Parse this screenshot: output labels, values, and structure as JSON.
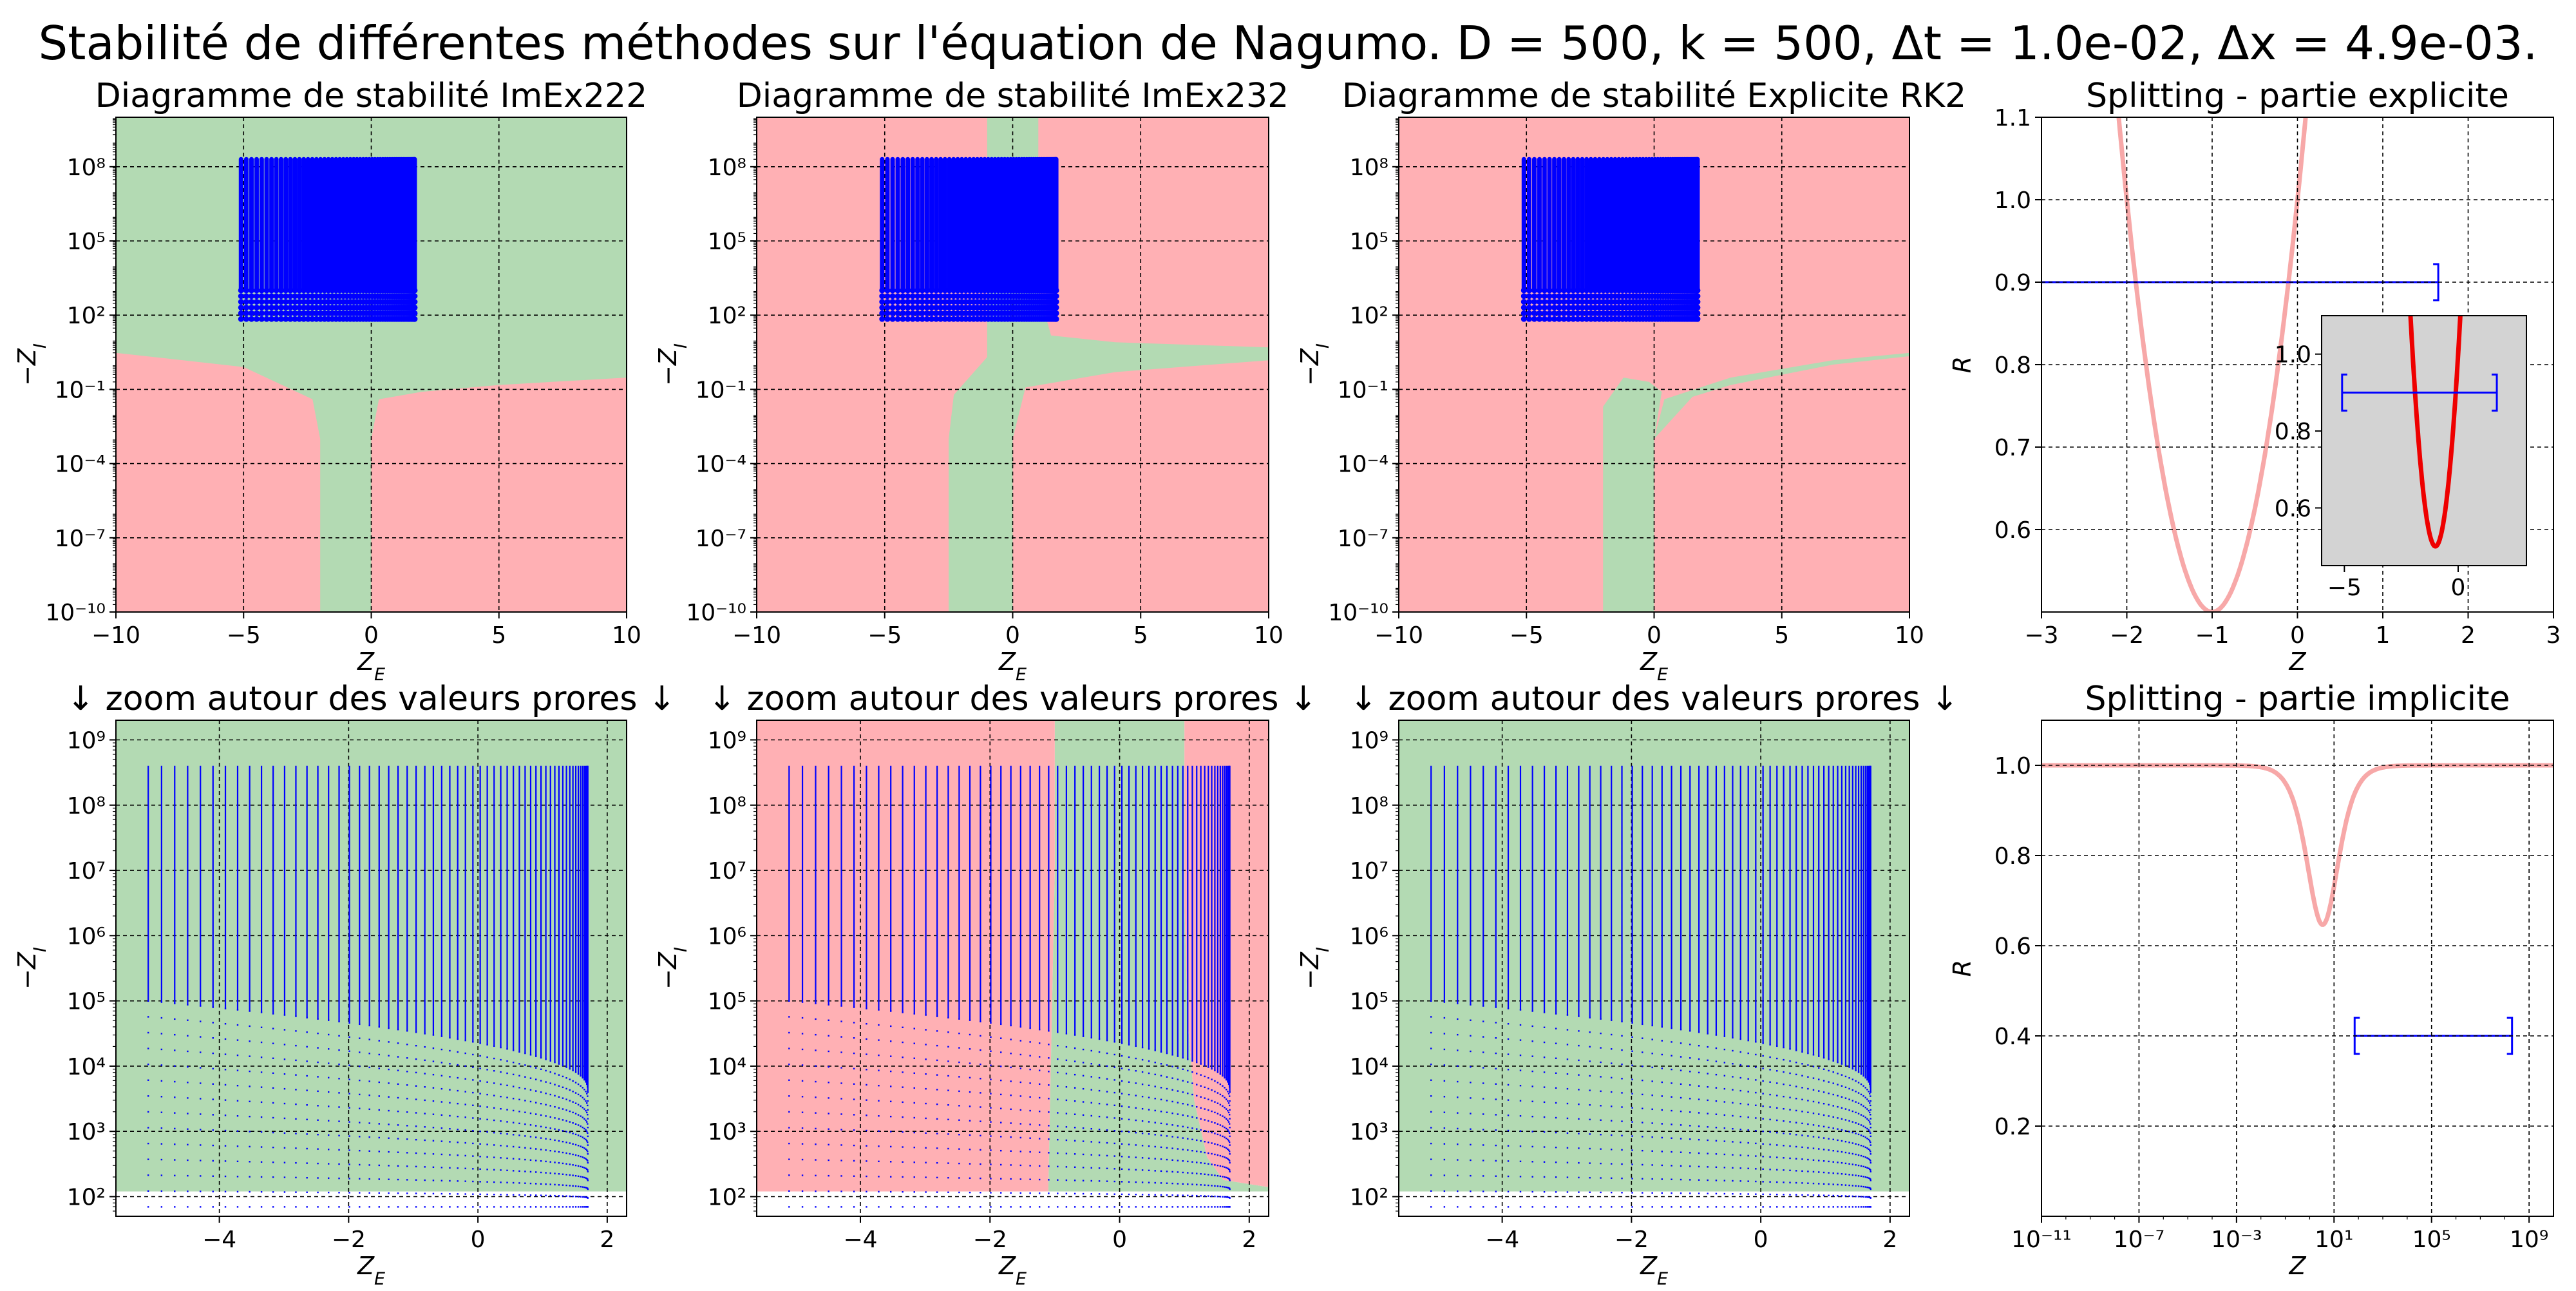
{
  "figure": {
    "suptitle": "Stabilité de différentes méthodes sur l'équation de Nagumo. D = 500, k = 500, Δt = 1.0e-02, Δx = 4.9e-03."
  },
  "colors": {
    "stable": "#b3dab3",
    "unstable": "#ffb0b4",
    "eigen": "#0000ff",
    "curve_light": "#f7a8a8",
    "curve_dark": "#ee0000",
    "inset_bg": "#d3d3d3"
  },
  "chart_data": [
    {
      "id": "stab-imex222",
      "type": "scatter",
      "title": "Diagramme de stabilité ImEx222",
      "xlabel": "Z_E",
      "ylabel": "−Z_I",
      "xlim": [
        -10,
        10
      ],
      "ylim": [
        1e-10,
        10000000000.0
      ],
      "yscale": "log",
      "xticks": [
        "−10",
        "−5",
        "0",
        "5",
        "10"
      ],
      "xtick_values": [
        -10,
        -5,
        0,
        5,
        10
      ],
      "yticks": [
        "10⁻¹⁰",
        "10⁻⁷",
        "10⁻⁴",
        "10⁻¹",
        "10²",
        "10⁵",
        "10⁸"
      ],
      "ytick_values": [
        1e-10,
        1e-07,
        0.0001,
        0.1,
        100.0,
        100000.0,
        100000000.0
      ],
      "grid": true,
      "background": "unstable",
      "regions": [
        {
          "kind": "stable",
          "points": [
            [
              -10,
              10000000000.0
            ],
            [
              10,
              10000000000.0
            ],
            [
              10,
              0.3
            ],
            [
              5,
              0.15
            ],
            [
              2,
              0.08
            ],
            [
              0.3,
              0.04
            ],
            [
              0,
              0.001
            ],
            [
              0,
              1e-10
            ],
            [
              -2,
              1e-10
            ],
            [
              -2,
              0.001
            ],
            [
              -2.3,
              0.04
            ],
            [
              -5,
              0.8
            ],
            [
              -10,
              3
            ]
          ]
        }
      ],
      "eigen_cloud": {
        "xmin": -5.1,
        "xmax": 1.7,
        "ymin": 70,
        "ymax": 200000000.0,
        "columns": 60,
        "rows": 24,
        "marker": "dot"
      }
    },
    {
      "id": "stab-imex232",
      "type": "scatter",
      "title": "Diagramme de stabilité ImEx232",
      "xlabel": "Z_E",
      "ylabel": "−Z_I",
      "xlim": [
        -10,
        10
      ],
      "ylim": [
        1e-10,
        10000000000.0
      ],
      "yscale": "log",
      "xticks": [
        "−10",
        "−5",
        "0",
        "5",
        "10"
      ],
      "xtick_values": [
        -10,
        -5,
        0,
        5,
        10
      ],
      "yticks": [
        "10⁻¹⁰",
        "10⁻⁷",
        "10⁻⁴",
        "10⁻¹",
        "10²",
        "10⁵",
        "10⁸"
      ],
      "ytick_values": [
        1e-10,
        1e-07,
        0.0001,
        0.1,
        100.0,
        100000.0,
        100000000.0
      ],
      "grid": true,
      "background": "unstable",
      "regions": [
        {
          "kind": "stable",
          "points": [
            [
              -1,
              10000000000.0
            ],
            [
              1,
              10000000000.0
            ],
            [
              1,
              1000.0
            ],
            [
              -1,
              1000.0
            ]
          ]
        },
        {
          "kind": "stable",
          "points": [
            [
              -1,
              1000.0
            ],
            [
              1,
              1000.0
            ],
            [
              1.5,
              15
            ],
            [
              4,
              8
            ],
            [
              10,
              5
            ],
            [
              10,
              1.5
            ],
            [
              4,
              0.5
            ],
            [
              0.5,
              0.12
            ],
            [
              0,
              0.001
            ],
            [
              0,
              1e-10
            ],
            [
              -2.5,
              1e-10
            ],
            [
              -2.5,
              0.001
            ],
            [
              -2.3,
              0.06
            ],
            [
              -1,
              2
            ]
          ]
        }
      ],
      "eigen_cloud": {
        "xmin": -5.1,
        "xmax": 1.7,
        "ymin": 70,
        "ymax": 200000000.0,
        "columns": 60,
        "rows": 24,
        "marker": "dot"
      }
    },
    {
      "id": "stab-rk2",
      "type": "scatter",
      "title": "Diagramme de stabilité Explicite RK2",
      "xlabel": "Z_E",
      "ylabel": "−Z_I",
      "xlim": [
        -10,
        10
      ],
      "ylim": [
        1e-10,
        10000000000.0
      ],
      "yscale": "log",
      "xticks": [
        "−10",
        "−5",
        "0",
        "5",
        "10"
      ],
      "xtick_values": [
        -10,
        -5,
        0,
        5,
        10
      ],
      "yticks": [
        "10⁻¹⁰",
        "10⁻⁷",
        "10⁻⁴",
        "10⁻¹",
        "10²",
        "10⁵",
        "10⁸"
      ],
      "ytick_values": [
        1e-10,
        1e-07,
        0.0001,
        0.1,
        100.0,
        100000.0,
        100000000.0
      ],
      "grid": true,
      "background": "unstable",
      "regions": [
        {
          "kind": "stable",
          "points": [
            [
              -2,
              1e-10
            ],
            [
              0,
              1e-10
            ],
            [
              0,
              0.001
            ],
            [
              0.4,
              0.04
            ],
            [
              3,
              0.3
            ],
            [
              7,
              1.5
            ],
            [
              10,
              3
            ],
            [
              10,
              2.2
            ],
            [
              7,
              1
            ],
            [
              3,
              0.15
            ],
            [
              1.5,
              0.05
            ],
            [
              0,
              0.001
            ],
            [
              0.3,
              0.08
            ],
            [
              -0.2,
              0.2
            ],
            [
              -1.2,
              0.3
            ],
            [
              -2,
              0.02
            ],
            [
              -2,
              1e-10
            ]
          ]
        }
      ],
      "eigen_cloud": {
        "xmin": -5.1,
        "xmax": 1.7,
        "ymin": 70,
        "ymax": 200000000.0,
        "columns": 60,
        "rows": 24,
        "marker": "dot"
      }
    },
    {
      "id": "splitting-explicite",
      "type": "line",
      "title": "Splitting - partie explicite",
      "xlabel": "Z",
      "ylabel": "R",
      "xlim": [
        -3,
        3
      ],
      "ylim": [
        0.5,
        1.1
      ],
      "xticks": [
        "−3",
        "−2",
        "−1",
        "0",
        "1",
        "2",
        "3"
      ],
      "xtick_values": [
        -3,
        -2,
        -1,
        0,
        1,
        2,
        3
      ],
      "yticks": [
        "0.6",
        "0.7",
        "0.8",
        "0.9",
        "1.0",
        "1.1"
      ],
      "ytick_values": [
        0.6,
        0.7,
        0.8,
        0.9,
        1.0,
        1.1
      ],
      "grid": true,
      "series": [
        {
          "formula": "|1 + z + z²/2|",
          "color": "curve_light"
        }
      ],
      "interval": {
        "x0": -3.5,
        "x1": 1.65,
        "y": 0.9
      },
      "inset": {
        "xlim": [
          -6,
          3
        ],
        "ylim": [
          0.45,
          1.1
        ],
        "xticks": [
          "−5",
          "0"
        ],
        "xtick_values": [
          -5,
          0
        ],
        "yticks": [
          "0.6",
          "0.8",
          "1.0"
        ],
        "ytick_values": [
          0.6,
          0.8,
          1.0
        ],
        "series": [
          {
            "formula": "|1 + z + z²/2|",
            "color": "curve_dark"
          }
        ],
        "interval": {
          "x0": -5.1,
          "x1": 1.7,
          "y": 0.9
        }
      }
    },
    {
      "id": "zoom-imex222",
      "type": "scatter",
      "title": "↓  zoom autour des valeurs prores  ↓",
      "xlabel": "Z_E",
      "ylabel": "−Z_I",
      "xlim": [
        -5.6,
        2.3
      ],
      "ylim": [
        50,
        2000000000.0
      ],
      "yscale": "log",
      "xticks": [
        "−4",
        "−2",
        "0",
        "2"
      ],
      "xtick_values": [
        -4,
        -2,
        0,
        2
      ],
      "yticks": [
        "10²",
        "10³",
        "10⁴",
        "10⁵",
        "10⁶",
        "10⁷",
        "10⁸",
        "10⁹"
      ],
      "ytick_values": [
        100,
        1000,
        10000,
        100000,
        1000000,
        10000000,
        100000000,
        1000000000
      ],
      "grid": true,
      "background": "none",
      "regions": [
        {
          "kind": "stable",
          "points": [
            [
              -5.6,
              2000000000.0
            ],
            [
              2.3,
              2000000000.0
            ],
            [
              2.3,
              120
            ],
            [
              -5.6,
              120
            ]
          ]
        }
      ],
      "eigen_cloud": {
        "xmin": -5.1,
        "xmax": 1.7,
        "ymin": 70,
        "ymax": 400000000.0,
        "columns": 60,
        "rows": 24,
        "marker": "line"
      }
    },
    {
      "id": "zoom-imex232",
      "type": "scatter",
      "title": "↓  zoom autour des valeurs prores  ↓",
      "xlabel": "Z_E",
      "ylabel": "−Z_I",
      "xlim": [
        -5.6,
        2.3
      ],
      "ylim": [
        50,
        2000000000.0
      ],
      "yscale": "log",
      "xticks": [
        "−4",
        "−2",
        "0",
        "2"
      ],
      "xtick_values": [
        -4,
        -2,
        0,
        2
      ],
      "yticks": [
        "10²",
        "10³",
        "10⁴",
        "10⁵",
        "10⁶",
        "10⁷",
        "10⁸",
        "10⁹"
      ],
      "ytick_values": [
        100,
        1000,
        10000,
        100000,
        1000000,
        10000000,
        100000000,
        1000000000
      ],
      "grid": true,
      "background": "none",
      "regions": [
        {
          "kind": "unstable",
          "points": [
            [
              -5.6,
              2000000000.0
            ],
            [
              -1.0,
              2000000000.0
            ],
            [
              -1.0,
              10000000.0
            ],
            [
              -1.1,
              120
            ],
            [
              -5.6,
              120
            ]
          ]
        },
        {
          "kind": "stable",
          "points": [
            [
              -1.0,
              2000000000.0
            ],
            [
              1.0,
              2000000000.0
            ],
            [
              1.0,
              3000000.0
            ],
            [
              1.05,
              50000.0
            ],
            [
              1.15,
              3000
            ],
            [
              1.35,
              400
            ],
            [
              1.6,
              180
            ],
            [
              2.3,
              140
            ],
            [
              2.3,
              120
            ],
            [
              -1.1,
              120
            ],
            [
              -1.0,
              10000000.0
            ]
          ]
        },
        {
          "kind": "unstable",
          "points": [
            [
              1.0,
              2000000000.0
            ],
            [
              2.3,
              2000000000.0
            ],
            [
              2.3,
              140
            ],
            [
              1.6,
              180
            ],
            [
              1.35,
              400
            ],
            [
              1.15,
              3000
            ],
            [
              1.05,
              50000.0
            ],
            [
              1.0,
              3000000.0
            ]
          ]
        }
      ],
      "eigen_cloud": {
        "xmin": -5.1,
        "xmax": 1.7,
        "ymin": 70,
        "ymax": 400000000.0,
        "columns": 60,
        "rows": 24,
        "marker": "line"
      }
    },
    {
      "id": "zoom-rk2",
      "type": "scatter",
      "title": "↓  zoom autour des valeurs prores  ↓",
      "xlabel": "Z_E",
      "ylabel": "−Z_I",
      "xlim": [
        -5.6,
        2.3
      ],
      "ylim": [
        50,
        2000000000.0
      ],
      "yscale": "log",
      "xticks": [
        "−4",
        "−2",
        "0",
        "2"
      ],
      "xtick_values": [
        -4,
        -2,
        0,
        2
      ],
      "yticks": [
        "10²",
        "10³",
        "10⁴",
        "10⁵",
        "10⁶",
        "10⁷",
        "10⁸",
        "10⁹"
      ],
      "ytick_values": [
        100,
        1000,
        10000,
        100000,
        1000000,
        10000000,
        100000000,
        1000000000
      ],
      "grid": true,
      "background": "none",
      "regions": [
        {
          "kind": "stable",
          "points": [
            [
              -5.6,
              2000000000.0
            ],
            [
              2.3,
              2000000000.0
            ],
            [
              2.3,
              120
            ],
            [
              -5.6,
              120
            ]
          ]
        }
      ],
      "eigen_cloud": {
        "xmin": -5.1,
        "xmax": 1.7,
        "ymin": 70,
        "ymax": 400000000.0,
        "columns": 60,
        "rows": 24,
        "marker": "line"
      }
    },
    {
      "id": "splitting-implicite",
      "type": "line",
      "title": "Splitting - partie implicite",
      "xlabel": "Z",
      "ylabel": "R",
      "xscale": "log",
      "xlim": [
        1e-11,
        10000000000.0
      ],
      "ylim": [
        0,
        1.1
      ],
      "xticks": [
        "10⁻¹¹",
        "10⁻⁷",
        "10⁻³",
        "10¹",
        "10⁵",
        "10⁹"
      ],
      "xtick_values": [
        1e-11,
        1e-07,
        0.001,
        10.0,
        100000.0,
        1000000000.0
      ],
      "yticks": [
        "0.2",
        "0.4",
        "0.6",
        "0.8",
        "1.0"
      ],
      "ytick_values": [
        0.2,
        0.4,
        0.6,
        0.8,
        1.0
      ],
      "grid": true,
      "series": [
        {
          "formula": "|1 − z(1−2γ)/(1+γz)²|, γ = 1 − 1/√2",
          "color": "curve_light"
        }
      ],
      "interval": {
        "x0": 70,
        "x1": 200000000.0,
        "y": 0.4
      }
    }
  ]
}
